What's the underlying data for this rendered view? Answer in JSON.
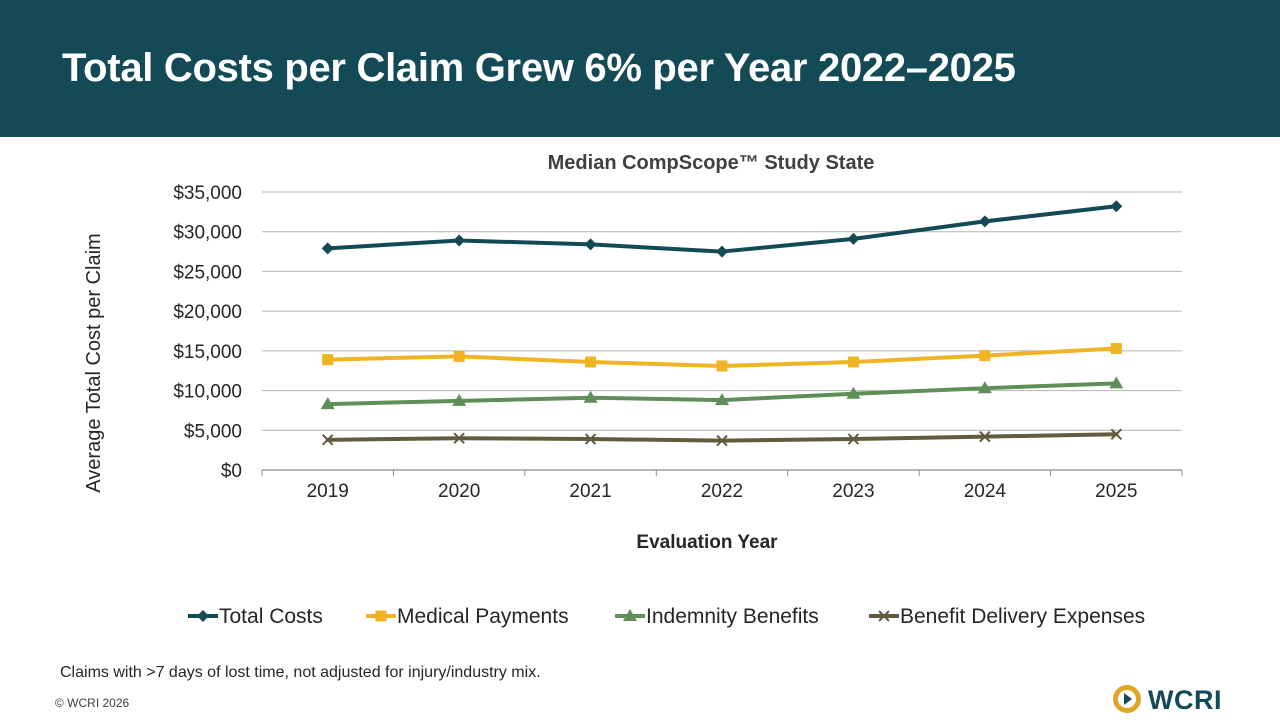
{
  "slide": {
    "title": "Total Costs per Claim Grew 6% per Year 2022–2025",
    "footnote": "Claims with >7 days of lost time, not adjusted for injury/industry mix.",
    "copyright": "© WCRI 2026",
    "logo_text": "WCRI"
  },
  "colors": {
    "header_bg": "#134a56",
    "total_costs": "#134a56",
    "medical_payments": "#f0b323",
    "indemnity_benefits": "#5f8f58",
    "benefit_delivery_expenses": "#635b3e",
    "logo_ring": "#e0a526"
  },
  "chart_data": {
    "type": "line",
    "title": "Median CompScope™ Study State",
    "xlabel": "Evaluation Year",
    "ylabel": "Average Total Cost per Claim",
    "x": [
      "2019",
      "2020",
      "2021",
      "2022",
      "2023",
      "2024",
      "2025"
    ],
    "ylim": [
      0,
      35000
    ],
    "y_ticks": [
      0,
      5000,
      10000,
      15000,
      20000,
      25000,
      30000,
      35000
    ],
    "y_tick_labels": [
      "$0",
      "$5,000",
      "$10,000",
      "$15,000",
      "$20,000",
      "$25,000",
      "$30,000",
      "$35,000"
    ],
    "grid": true,
    "legend_position": "bottom",
    "series": [
      {
        "name": "Total Costs",
        "marker": "diamond",
        "color_key": "total_costs",
        "values": [
          27900,
          28900,
          28400,
          27500,
          29100,
          31300,
          33200
        ]
      },
      {
        "name": "Medical Payments",
        "marker": "square",
        "color_key": "medical_payments",
        "values": [
          13900,
          14300,
          13600,
          13100,
          13600,
          14400,
          15300
        ]
      },
      {
        "name": "Indemnity Benefits",
        "marker": "triangle",
        "color_key": "indemnity_benefits",
        "values": [
          8300,
          8700,
          9100,
          8800,
          9600,
          10300,
          10900
        ]
      },
      {
        "name": "Benefit Delivery Expenses",
        "marker": "x",
        "color_key": "benefit_delivery_expenses",
        "values": [
          3800,
          4000,
          3900,
          3700,
          3900,
          4200,
          4500
        ]
      }
    ]
  }
}
